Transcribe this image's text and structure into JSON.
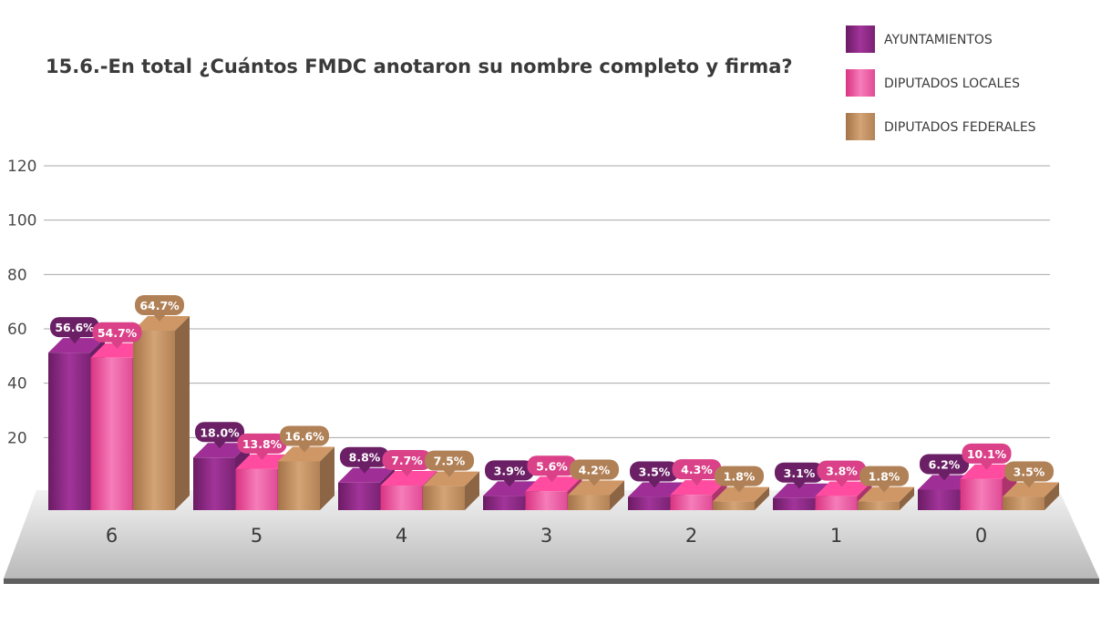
{
  "chart_data": {
    "type": "bar",
    "title": "15.6.-En total ¿Cuántos FMDC anotaron su nombre completo y firma?",
    "xlabel": "",
    "ylabel": "",
    "categories": [
      "6",
      "5",
      "4",
      "3",
      "2",
      "1",
      "0"
    ],
    "y_ticks": [
      "20",
      "40",
      "60",
      "80",
      "100",
      "120"
    ],
    "ylim": [
      0,
      120
    ],
    "grid": true,
    "legend_position": "top-right",
    "series": [
      {
        "name": "AYUNTAMIENTOS",
        "values": [
          56.6,
          18.0,
          8.8,
          3.9,
          3.5,
          3.1,
          6.2
        ],
        "labels": [
          "56.6%",
          "18.0%",
          "8.8%",
          "3.9%",
          "3.5%",
          "3.1%",
          "6.2%"
        ],
        "color": "#8e2a86"
      },
      {
        "name": "DIPUTADOS LOCALES",
        "values": [
          54.7,
          13.8,
          7.7,
          5.6,
          4.3,
          3.8,
          10.1
        ],
        "labels": [
          "54.7%",
          "13.8%",
          "7.7%",
          "5.6%",
          "4.3%",
          "3.8%",
          "10.1%"
        ],
        "color": "#e5448f"
      },
      {
        "name": "DIPUTADOS FEDERALES",
        "values": [
          64.7,
          16.6,
          7.5,
          4.2,
          1.8,
          1.8,
          3.5
        ],
        "labels": [
          "64.7%",
          "16.6%",
          "7.5%",
          "4.2%",
          "1.8%",
          "1.8%",
          "3.5%"
        ],
        "color": "#b9875a"
      }
    ]
  }
}
